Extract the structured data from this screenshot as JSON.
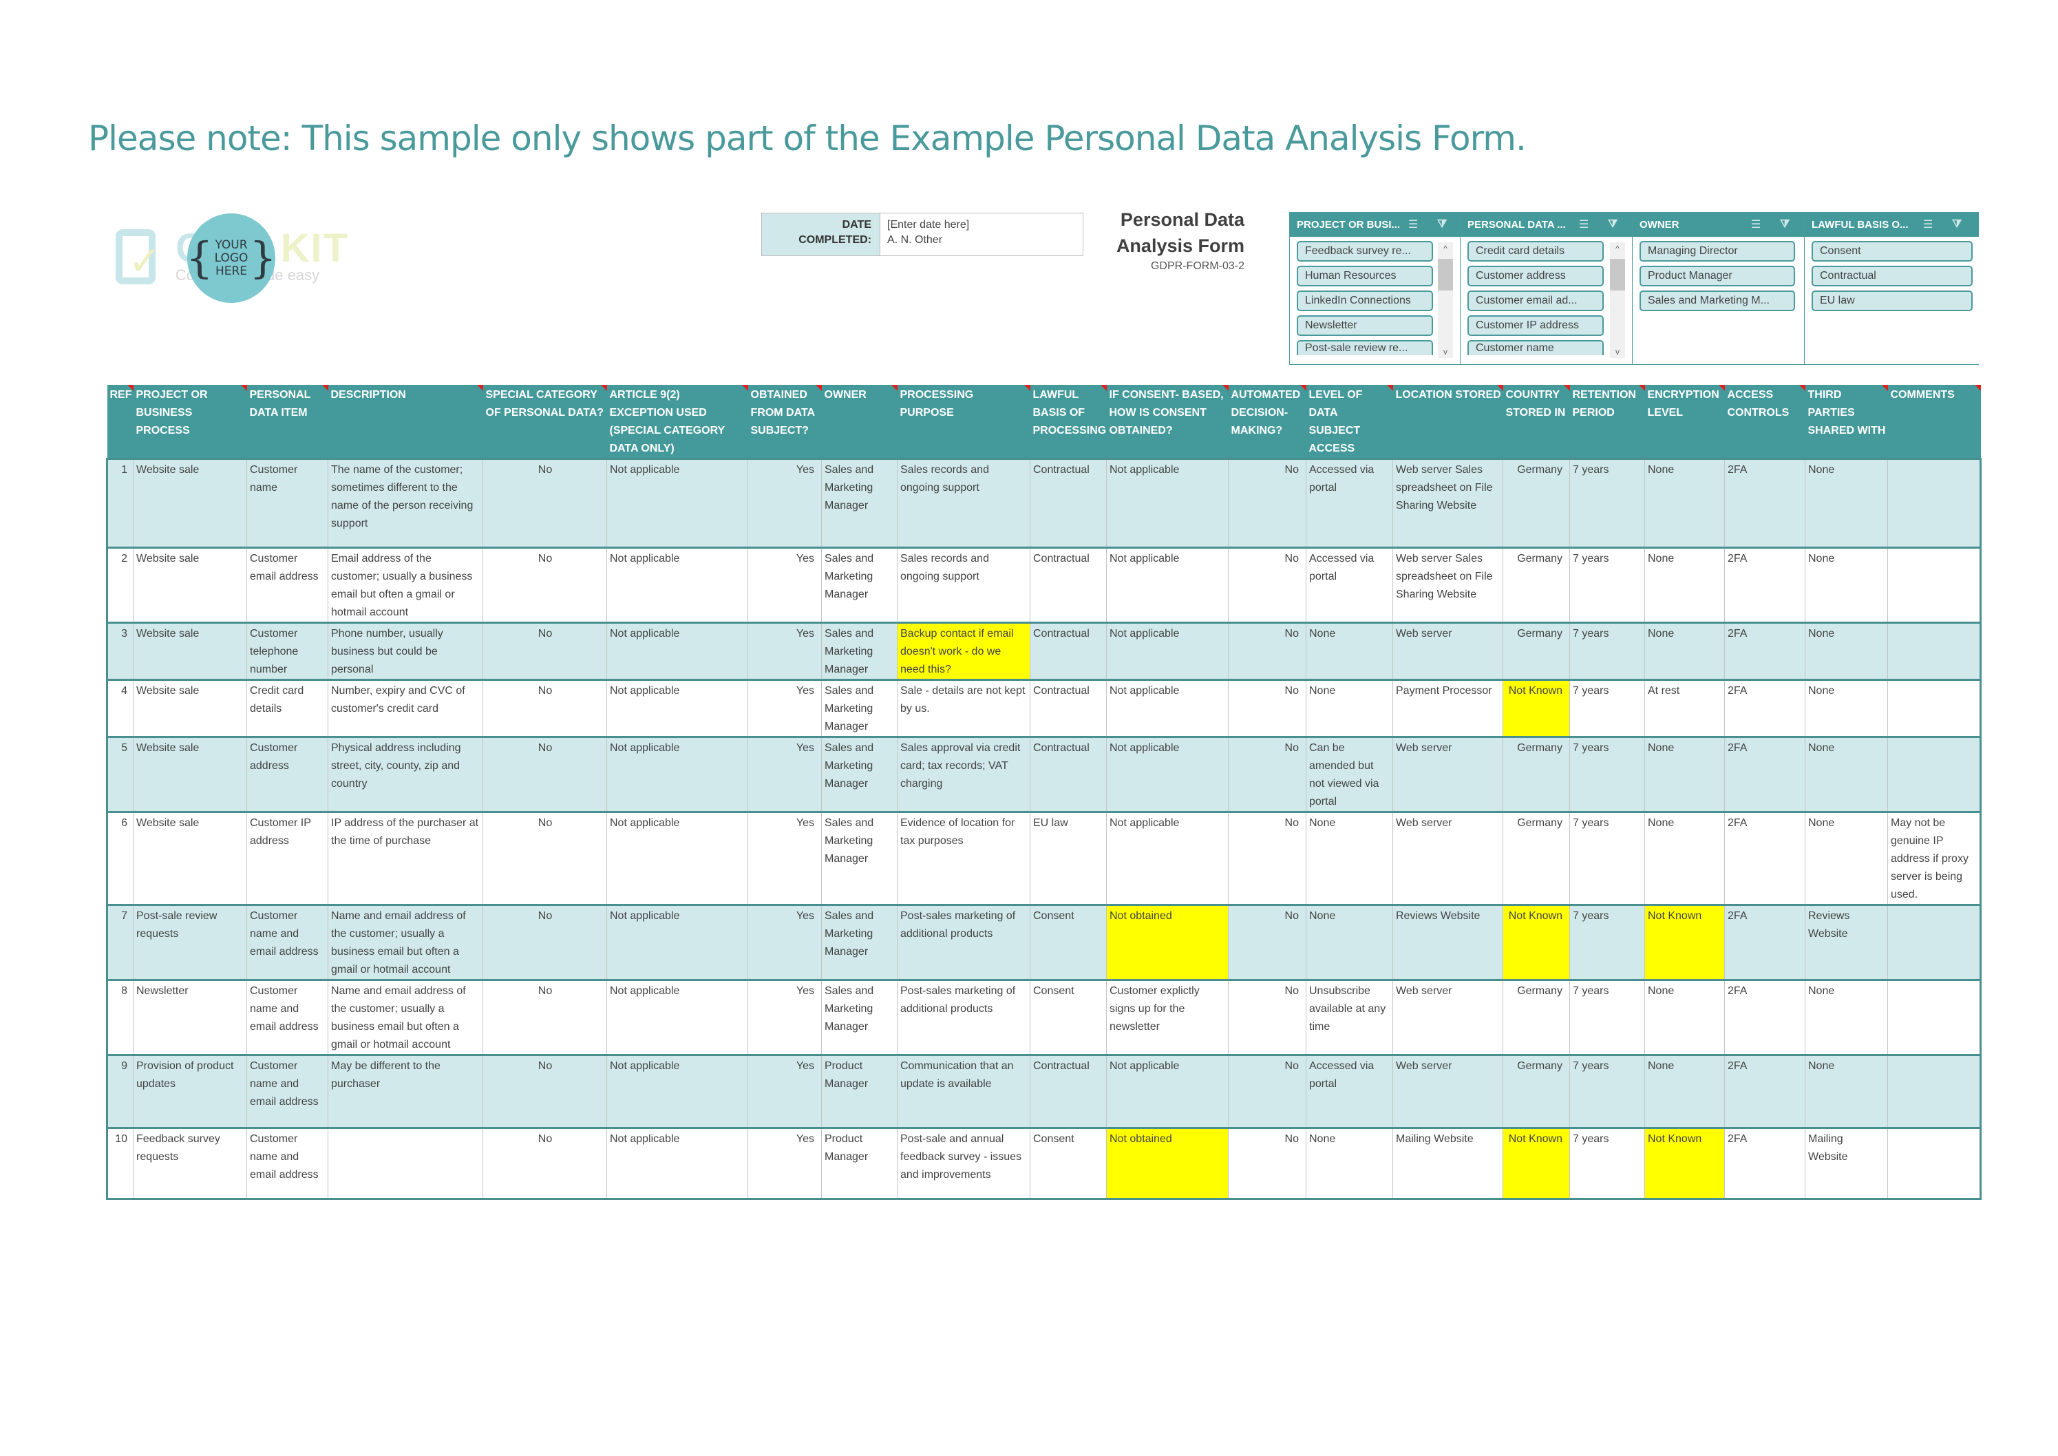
{
  "notice": "Please note: This sample only shows part of the Example Personal Data Analysis Form.",
  "logo": {
    "placeholder": [
      "YOUR",
      "LOGO",
      "HERE"
    ],
    "watermark_brand": "CERTIKIT",
    "watermark_tagline": "Compliance made easy"
  },
  "date_block": {
    "labels": [
      "DATE",
      "COMPLETED:"
    ],
    "values": [
      "[Enter date here]",
      "A. N. Other"
    ]
  },
  "form_title": {
    "line1": "Personal Data",
    "line2": "Analysis Form",
    "code": "GDPR-FORM-03-2"
  },
  "slicers": [
    {
      "title": "PROJECT OR BUSI...",
      "items": [
        "Feedback survey re...",
        "Human Resources",
        "LinkedIn Connections",
        "Newsletter",
        "Post-sale review re..."
      ],
      "scrollable": true
    },
    {
      "title": "PERSONAL DATA ...",
      "items": [
        "Credit card details",
        "Customer address",
        "Customer email ad...",
        "Customer IP address",
        "Customer name"
      ],
      "scrollable": true
    },
    {
      "title": "OWNER",
      "items": [
        "Managing Director",
        "Product Manager",
        "Sales and Marketing M..."
      ],
      "scrollable": false
    },
    {
      "title": "LAWFUL BASIS O...",
      "items": [
        "Consent",
        "Contractual",
        "EU law"
      ],
      "scrollable": false
    }
  ],
  "icons": {
    "multi_select": "multi-select-icon",
    "clear_filter": "clear-filter-icon",
    "scroll_up": "chevron-up-icon",
    "scroll_down": "chevron-down-icon"
  },
  "colors": {
    "header_teal": "#449a9b",
    "band_light": "#d1e9eb",
    "highlight": "#ffff00",
    "notice_text": "#4a9a9c",
    "comment_marker": "#e0201e"
  },
  "table": {
    "columns": [
      "REF",
      "PROJECT OR BUSINESS PROCESS",
      "PERSONAL DATA ITEM",
      "DESCRIPTION",
      "SPECIAL CATEGORY OF PERSONAL DATA?",
      "ARTICLE 9(2) EXCEPTION USED (SPECIAL CATEGORY DATA ONLY)",
      "OBTAINED FROM DATA SUBJECT?",
      "OWNER",
      "PROCESSING PURPOSE",
      "LAWFUL BASIS OF PROCESSING",
      "IF CONSENT- BASED, HOW IS CONSENT OBTAINED?",
      "AUTOMATED DECISION-MAKING?",
      "LEVEL OF DATA SUBJECT ACCESS",
      "LOCATION STORED",
      "COUNTRY STORED IN",
      "RETENTION PERIOD",
      "ENCRYPTION LEVEL",
      "ACCESS CONTROLS",
      "THIRD PARTIES SHARED WITH",
      "COMMENTS"
    ],
    "rows": [
      [
        "1",
        "Website sale",
        "Customer name",
        "The name of the customer; sometimes different to the name of the person receiving support",
        "No",
        "Not applicable",
        "Yes",
        "Sales and Marketing Manager",
        "Sales records and ongoing support",
        "Contractual",
        "Not applicable",
        "No",
        "Accessed via portal",
        "Web server Sales spreadsheet on File Sharing Website",
        "Germany",
        "7 years",
        "None",
        "2FA",
        "None",
        ""
      ],
      [
        "2",
        "Website sale",
        "Customer email address",
        "Email address of the customer; usually a business email but often a gmail or hotmail account",
        "No",
        "Not applicable",
        "Yes",
        "Sales and Marketing Manager",
        "Sales records and ongoing support",
        "Contractual",
        "Not applicable",
        "No",
        "Accessed via portal",
        "Web server Sales spreadsheet on File Sharing Website",
        "Germany",
        "7 years",
        "None",
        "2FA",
        "None",
        ""
      ],
      [
        "3",
        "Website sale",
        "Customer telephone number",
        "Phone number, usually business but could be personal",
        "No",
        "Not applicable",
        "Yes",
        "Sales and Marketing Manager",
        "Backup contact if email doesn't work - do we need this?",
        "Contractual",
        "Not applicable",
        "No",
        "None",
        "Web server",
        "Germany",
        "7 years",
        "None",
        "2FA",
        "None",
        ""
      ],
      [
        "4",
        "Website sale",
        "Credit card details",
        "Number, expiry and CVC of customer's credit card",
        "No",
        "Not applicable",
        "Yes",
        "Sales and Marketing Manager",
        "Sale - details are not kept by us.",
        "Contractual",
        "Not applicable",
        "No",
        "None",
        "Payment Processor",
        "Not Known",
        "7 years",
        "At rest",
        "2FA",
        "None",
        ""
      ],
      [
        "5",
        "Website sale",
        "Customer address",
        "Physical address including street, city, county, zip and country",
        "No",
        "Not applicable",
        "Yes",
        "Sales and Marketing Manager",
        "Sales approval via credit card; tax records; VAT charging",
        "Contractual",
        "Not applicable",
        "No",
        "Can be amended but not viewed via portal",
        "Web server",
        "Germany",
        "7 years",
        "None",
        "2FA",
        "None",
        ""
      ],
      [
        "6",
        "Website sale",
        "Customer IP address",
        "IP address of the purchaser at the time of purchase",
        "No",
        "Not applicable",
        "Yes",
        "Sales and Marketing Manager",
        "Evidence of location for tax purposes",
        "EU law",
        "Not applicable",
        "No",
        "None",
        "Web server",
        "Germany",
        "7 years",
        "None",
        "2FA",
        "None",
        "May not be genuine IP address if proxy server is being used."
      ],
      [
        "7",
        "Post-sale review requests",
        "Customer name and email address",
        "Name and email address of the customer; usually a business email but often a gmail or hotmail account",
        "No",
        "Not applicable",
        "Yes",
        "Sales and Marketing Manager",
        "Post-sales marketing of additional products",
        "Consent",
        "Not obtained",
        "No",
        "None",
        "Reviews Website",
        "Not Known",
        "7 years",
        "Not Known",
        "2FA",
        "Reviews Website",
        ""
      ],
      [
        "8",
        "Newsletter",
        "Customer name and email address",
        "Name and email address of the customer; usually a business email but often a gmail or hotmail account",
        "No",
        "Not applicable",
        "Yes",
        "Sales and Marketing Manager",
        "Post-sales marketing of additional products",
        "Consent",
        "Customer explictly signs up for the newsletter",
        "No",
        "Unsubscribe available at any time",
        "Web server",
        "Germany",
        "7 years",
        "None",
        "2FA",
        "None",
        ""
      ],
      [
        "9",
        "Provision of product updates",
        "Customer name and email address",
        "May be different to the purchaser",
        "No",
        "Not applicable",
        "Yes",
        "Product Manager",
        "Communication that an update is available",
        "Contractual",
        "Not applicable",
        "No",
        "Accessed via portal",
        "Web server",
        "Germany",
        "7 years",
        "None",
        "2FA",
        "None",
        ""
      ],
      [
        "10",
        "Feedback survey requests",
        "Customer name and email address",
        "",
        "No",
        "Not applicable",
        "Yes",
        "Product Manager",
        "Post-sale and annual feedback survey - issues and improvements",
        "Consent",
        "Not obtained",
        "No",
        "None",
        "Mailing Website",
        "Not Known",
        "7 years",
        "Not Known",
        "2FA",
        "Mailing Website",
        ""
      ]
    ],
    "highlighted_cells": [
      [
        3,
        8
      ],
      [
        4,
        14
      ],
      [
        7,
        10
      ],
      [
        7,
        14
      ],
      [
        7,
        16
      ],
      [
        10,
        10
      ],
      [
        10,
        14
      ],
      [
        10,
        16
      ]
    ]
  }
}
